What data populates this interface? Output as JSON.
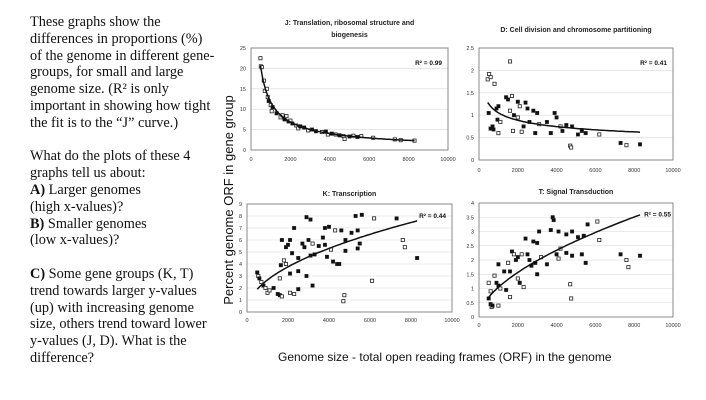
{
  "text": {
    "intro_lines": [
      "These graphs show the",
      "differences in proportions (%)",
      "of the genome in different gene-",
      "groups, for small and large",
      "genome size.  (R² is only",
      "important in showing how tight",
      "the fit is to the “J” curve.)"
    ],
    "question_lines": [
      "What do the plots of these 4",
      "graphs tell us about:"
    ],
    "a_label": "A)",
    "a_lines": [
      " Larger genomes",
      "(high x-values)?"
    ],
    "b_label": "B)",
    "b_lines": [
      " Smaller genomes",
      "(low x-values)?"
    ],
    "c_label": "C)",
    "c_lines": [
      " Some gene groups (K, T)",
      "trend towards larger y-values",
      "(up) with increasing genome",
      "size, others trend toward lower",
      "y-values (J, D).  What is the",
      "difference?"
    ]
  },
  "shared_ylabel": "Percent genome ORF in gene group",
  "shared_xlabel": "Genome size - total open reading frames (ORF) in the genome",
  "chart_data": [
    {
      "id": "J",
      "type": "scatter",
      "title": [
        "J: Translation, ribosomal structure and",
        "biogenesis"
      ],
      "r2_label": "R² = 0.99",
      "xlim": [
        0,
        10000
      ],
      "xticks": [
        0,
        2000,
        4000,
        6000,
        8000,
        10000
      ],
      "ylim": [
        0,
        25
      ],
      "yticks": [
        0,
        5,
        10,
        15,
        20,
        25
      ],
      "grid": "horizontal",
      "trendline": {
        "type": "power",
        "a": 2390,
        "b": -0.77,
        "x_range": [
          480,
          8300
        ]
      },
      "points_format": "[x, y, open_marker(1)/filled(0)]",
      "points": [
        [
          480,
          22.5,
          1
        ],
        [
          500,
          20.5,
          1
        ],
        [
          550,
          20.3,
          1
        ],
        [
          650,
          17,
          1
        ],
        [
          700,
          14.5,
          1
        ],
        [
          800,
          15,
          1
        ],
        [
          850,
          13,
          1
        ],
        [
          900,
          12,
          0
        ],
        [
          1000,
          11,
          1
        ],
        [
          1050,
          9.5,
          1
        ],
        [
          1100,
          10.5,
          0
        ],
        [
          1300,
          9,
          0
        ],
        [
          1500,
          8,
          1
        ],
        [
          1600,
          8.5,
          1
        ],
        [
          1700,
          7.5,
          0
        ],
        [
          1800,
          8.3,
          1
        ],
        [
          1900,
          7,
          0
        ],
        [
          2000,
          7.2,
          1
        ],
        [
          2100,
          6.5,
          0
        ],
        [
          2300,
          6,
          1
        ],
        [
          2400,
          5.3,
          1
        ],
        [
          2500,
          5.8,
          0
        ],
        [
          2700,
          5.5,
          0
        ],
        [
          2900,
          4.8,
          1
        ],
        [
          3100,
          5,
          0
        ],
        [
          3300,
          4.6,
          0
        ],
        [
          3600,
          4.4,
          1
        ],
        [
          3800,
          4.5,
          0
        ],
        [
          3900,
          3.8,
          1
        ],
        [
          4100,
          4,
          0
        ],
        [
          4300,
          3.8,
          1
        ],
        [
          4500,
          3.6,
          0
        ],
        [
          4700,
          3.4,
          1
        ],
        [
          4750,
          2.7,
          1
        ],
        [
          5000,
          3.3,
          0
        ],
        [
          5200,
          3.5,
          1
        ],
        [
          5400,
          3.2,
          0
        ],
        [
          5600,
          3.4,
          1
        ],
        [
          6200,
          3,
          1
        ],
        [
          7300,
          2.6,
          1
        ],
        [
          7600,
          2.4,
          1
        ],
        [
          8300,
          2.3,
          1
        ]
      ]
    },
    {
      "id": "D",
      "type": "scatter",
      "title": [
        "D: Cell division and chromosome partitioning"
      ],
      "r2_label": "R² = 0.41",
      "xlim": [
        0,
        10000
      ],
      "xticks": [
        0,
        2000,
        4000,
        6000,
        8000,
        10000
      ],
      "ylim": [
        0,
        2.5
      ],
      "yticks": [
        0,
        0.5,
        1,
        1.5,
        2,
        2.5
      ],
      "grid": "horizontal",
      "trendline": {
        "type": "power",
        "a": 5.88,
        "b": -0.249,
        "x_range": [
          450,
          8300
        ]
      },
      "points": [
        [
          500,
          1.05,
          0
        ],
        [
          450,
          1.8,
          1
        ],
        [
          520,
          1.92,
          1
        ],
        [
          600,
          1.85,
          1
        ],
        [
          800,
          1.7,
          1
        ],
        [
          600,
          0.7,
          0
        ],
        [
          700,
          0.75,
          0
        ],
        [
          750,
          0.68,
          0
        ],
        [
          900,
          1.15,
          0
        ],
        [
          1000,
          1.2,
          0
        ],
        [
          1000,
          0.6,
          1
        ],
        [
          950,
          0.9,
          0
        ],
        [
          1100,
          0.85,
          1
        ],
        [
          1400,
          1.4,
          0
        ],
        [
          1500,
          1.35,
          0
        ],
        [
          1600,
          2.2,
          1
        ],
        [
          1700,
          1.43,
          1
        ],
        [
          1750,
          0.65,
          1
        ],
        [
          1600,
          1.1,
          1
        ],
        [
          1800,
          1.0,
          0
        ],
        [
          2000,
          1.3,
          0
        ],
        [
          2000,
          0.95,
          1
        ],
        [
          2100,
          1.2,
          1
        ],
        [
          2200,
          0.63,
          1
        ],
        [
          2300,
          0.75,
          0
        ],
        [
          2400,
          1.28,
          0
        ],
        [
          2500,
          1.15,
          0
        ],
        [
          2600,
          0.85,
          0
        ],
        [
          2800,
          1.1,
          0
        ],
        [
          2900,
          0.6,
          0
        ],
        [
          3000,
          1.05,
          0
        ],
        [
          3100,
          0.8,
          1
        ],
        [
          3500,
          0.85,
          0
        ],
        [
          3700,
          0.6,
          0
        ],
        [
          3900,
          1.05,
          0
        ],
        [
          4000,
          0.95,
          0
        ],
        [
          4200,
          0.75,
          1
        ],
        [
          4300,
          0.65,
          0
        ],
        [
          4500,
          0.78,
          0
        ],
        [
          4700,
          0.32,
          1
        ],
        [
          4750,
          0.28,
          1
        ],
        [
          4800,
          0.75,
          0
        ],
        [
          5100,
          0.57,
          0
        ],
        [
          5300,
          0.65,
          0
        ],
        [
          5500,
          0.6,
          0
        ],
        [
          6200,
          0.57,
          1
        ],
        [
          7300,
          0.38,
          0
        ],
        [
          7600,
          0.33,
          1
        ],
        [
          8300,
          0.35,
          0
        ]
      ]
    },
    {
      "id": "K",
      "type": "scatter",
      "title": [
        "K: Transcription"
      ],
      "r2_label": "R² = 0.44",
      "xlim": [
        0,
        10000
      ],
      "xticks": [
        0,
        2000,
        4000,
        6000,
        8000,
        10000
      ],
      "ylim": [
        0,
        9
      ],
      "yticks": [
        0,
        1,
        2,
        3,
        4,
        5,
        6,
        7,
        8,
        9
      ],
      "grid": "horizontal",
      "trendline": {
        "type": "power",
        "a": 0.0888,
        "b": 0.493,
        "x_range": [
          500,
          8300
        ]
      },
      "points": [
        [
          500,
          3.3,
          0
        ],
        [
          550,
          3,
          1
        ],
        [
          600,
          2.8,
          0
        ],
        [
          700,
          2.5,
          1
        ],
        [
          800,
          2.2,
          0
        ],
        [
          900,
          2,
          1
        ],
        [
          1000,
          1.6,
          1
        ],
        [
          1100,
          1.8,
          1
        ],
        [
          1300,
          2,
          0
        ],
        [
          1500,
          1.5,
          0
        ],
        [
          1600,
          1.4,
          0
        ],
        [
          1700,
          1.3,
          1
        ],
        [
          1600,
          2.8,
          1
        ],
        [
          1650,
          3.9,
          0
        ],
        [
          1700,
          6,
          0
        ],
        [
          1800,
          4.3,
          1
        ],
        [
          1900,
          5.4,
          0
        ],
        [
          1900,
          4,
          1
        ],
        [
          2000,
          5.6,
          0
        ],
        [
          2100,
          3.2,
          0
        ],
        [
          2100,
          1.6,
          1
        ],
        [
          2100,
          6,
          0
        ],
        [
          2200,
          4.9,
          0
        ],
        [
          2300,
          7,
          0
        ],
        [
          2300,
          1.5,
          1
        ],
        [
          2500,
          4.5,
          0
        ],
        [
          2500,
          3.4,
          0
        ],
        [
          2500,
          1.9,
          0
        ],
        [
          2700,
          5.7,
          0
        ],
        [
          2800,
          5.4,
          0
        ],
        [
          2900,
          7.9,
          0
        ],
        [
          2900,
          3,
          0
        ],
        [
          3000,
          6,
          0
        ],
        [
          3100,
          7.7,
          0
        ],
        [
          3100,
          4.7,
          0
        ],
        [
          3200,
          5.7,
          1
        ],
        [
          3200,
          2.2,
          0
        ],
        [
          3300,
          4.8,
          0
        ],
        [
          3500,
          5.5,
          0
        ],
        [
          3700,
          6.2,
          0
        ],
        [
          3800,
          5.6,
          0
        ],
        [
          3800,
          7,
          0
        ],
        [
          3900,
          4.6,
          0
        ],
        [
          4000,
          7.1,
          0
        ],
        [
          4100,
          5.2,
          1
        ],
        [
          4200,
          4.2,
          0
        ],
        [
          4300,
          6.8,
          1
        ],
        [
          4400,
          4,
          0
        ],
        [
          4500,
          4,
          0
        ],
        [
          4600,
          6.8,
          0
        ],
        [
          4700,
          0.9,
          1
        ],
        [
          4750,
          1.4,
          1
        ],
        [
          4800,
          6,
          0
        ],
        [
          4800,
          5.1,
          0
        ],
        [
          5100,
          6.6,
          0
        ],
        [
          5300,
          8,
          0
        ],
        [
          5400,
          5.3,
          0
        ],
        [
          5400,
          6.8,
          0
        ],
        [
          5500,
          5.7,
          0
        ],
        [
          5600,
          8.1,
          0
        ],
        [
          6100,
          2.6,
          1
        ],
        [
          6200,
          7.8,
          1
        ],
        [
          7300,
          7.8,
          0
        ],
        [
          7600,
          6,
          1
        ],
        [
          7700,
          5.4,
          1
        ],
        [
          8300,
          4.5,
          0
        ]
      ]
    },
    {
      "id": "T",
      "type": "scatter",
      "title": [
        "T: Signal Transduction"
      ],
      "r2_label": "R² = 0.55",
      "xlim": [
        0,
        10000
      ],
      "xticks": [
        0,
        2000,
        4000,
        6000,
        8000,
        10000
      ],
      "ylim": [
        0,
        4
      ],
      "yticks": [
        0,
        0.5,
        1,
        1.5,
        2,
        2.5,
        3,
        3.5,
        4
      ],
      "grid": "horizontal",
      "trendline": {
        "type": "power",
        "a": 0.0186,
        "b": 0.583,
        "x_range": [
          500,
          8300
        ]
      },
      "points": [
        [
          500,
          0.65,
          0
        ],
        [
          500,
          1.2,
          1
        ],
        [
          600,
          0.9,
          1
        ],
        [
          600,
          0.45,
          0
        ],
        [
          650,
          0.35,
          1
        ],
        [
          700,
          0.4,
          0
        ],
        [
          800,
          1.45,
          1
        ],
        [
          900,
          1.2,
          0
        ],
        [
          1000,
          1.1,
          0
        ],
        [
          1000,
          1.85,
          0
        ],
        [
          1000,
          0.4,
          1
        ],
        [
          1100,
          1,
          1
        ],
        [
          1300,
          1.6,
          0
        ],
        [
          1400,
          0.95,
          0
        ],
        [
          1500,
          1.9,
          1
        ],
        [
          1600,
          0.7,
          1
        ],
        [
          1600,
          1.6,
          0
        ],
        [
          1700,
          2.3,
          0
        ],
        [
          1800,
          2.2,
          1
        ],
        [
          1900,
          2,
          0
        ],
        [
          2000,
          2.1,
          0
        ],
        [
          2000,
          1.35,
          1
        ],
        [
          2100,
          1.2,
          0
        ],
        [
          2200,
          2.2,
          1
        ],
        [
          2300,
          1.05,
          1
        ],
        [
          2400,
          2.75,
          0
        ],
        [
          2500,
          2.2,
          0
        ],
        [
          2600,
          2,
          0
        ],
        [
          2700,
          1.8,
          0
        ],
        [
          2800,
          2.65,
          0
        ],
        [
          2900,
          1.9,
          0
        ],
        [
          3000,
          1.5,
          0
        ],
        [
          3000,
          2.6,
          0
        ],
        [
          3100,
          3,
          0
        ],
        [
          3200,
          2.1,
          1
        ],
        [
          3500,
          1.85,
          0
        ],
        [
          3700,
          3.05,
          0
        ],
        [
          3800,
          3.5,
          0
        ],
        [
          3850,
          3.4,
          0
        ],
        [
          4000,
          2.2,
          0
        ],
        [
          4100,
          3,
          0
        ],
        [
          4100,
          2.05,
          1
        ],
        [
          4200,
          2.4,
          1
        ],
        [
          4500,
          2.9,
          0
        ],
        [
          4500,
          2.25,
          0
        ],
        [
          4700,
          1.15,
          1
        ],
        [
          4750,
          0.65,
          1
        ],
        [
          4800,
          3,
          0
        ],
        [
          4800,
          2.15,
          0
        ],
        [
          5100,
          2.8,
          0
        ],
        [
          5300,
          2.2,
          0
        ],
        [
          5400,
          2.85,
          0
        ],
        [
          5500,
          1.9,
          0
        ],
        [
          5600,
          3.25,
          0
        ],
        [
          6100,
          3.35,
          1
        ],
        [
          6200,
          2.7,
          1
        ],
        [
          7300,
          2.2,
          0
        ],
        [
          7600,
          2,
          1
        ],
        [
          7700,
          1.75,
          1
        ],
        [
          8300,
          2.15,
          0
        ]
      ]
    }
  ]
}
